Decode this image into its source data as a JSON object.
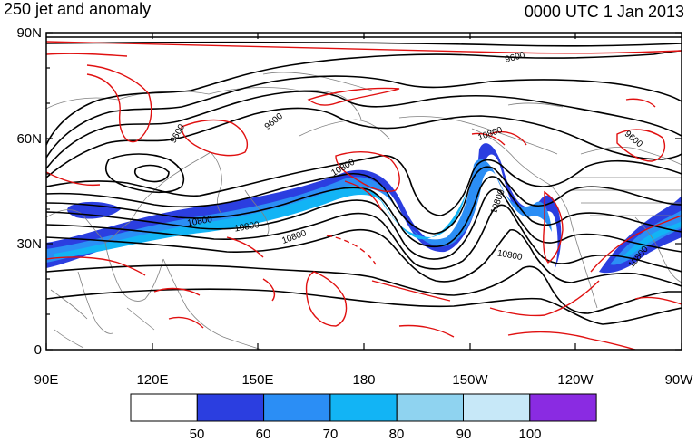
{
  "title_left": "250 jet and anomaly",
  "title_right": "0000 UTC 1 Jan 2013",
  "colors": {
    "jet_50": "#2b3ee0",
    "jet_60": "#2b8ef5",
    "jet_70": "#12b4f5",
    "jet_80": "#8fd3f0",
    "jet_90": "#c7e8f8",
    "jet_100": "#8a2be2",
    "height_contour": "#000000",
    "anomaly_contour": "#e01010",
    "coastline": "#808080"
  },
  "map": {
    "lat_ticks": [
      "90N",
      "60N",
      "30N",
      "0"
    ],
    "lon_ticks": [
      "90E",
      "120E",
      "150E",
      "180",
      "150W",
      "120W",
      "90W"
    ],
    "contour_labels": [
      "9600",
      "9600",
      "9600",
      "9600",
      "10800",
      "10800",
      "10800",
      "10800",
      "10800",
      "10800",
      "10800",
      "10800"
    ]
  },
  "colorbar": {
    "labels": [
      "50",
      "60",
      "70",
      "80",
      "90",
      "100"
    ],
    "colors": [
      "#ffffff",
      "#2b3ee0",
      "#2b8ef5",
      "#12b4f5",
      "#8fd3f0",
      "#c7e8f8",
      "#8a2be2"
    ]
  }
}
